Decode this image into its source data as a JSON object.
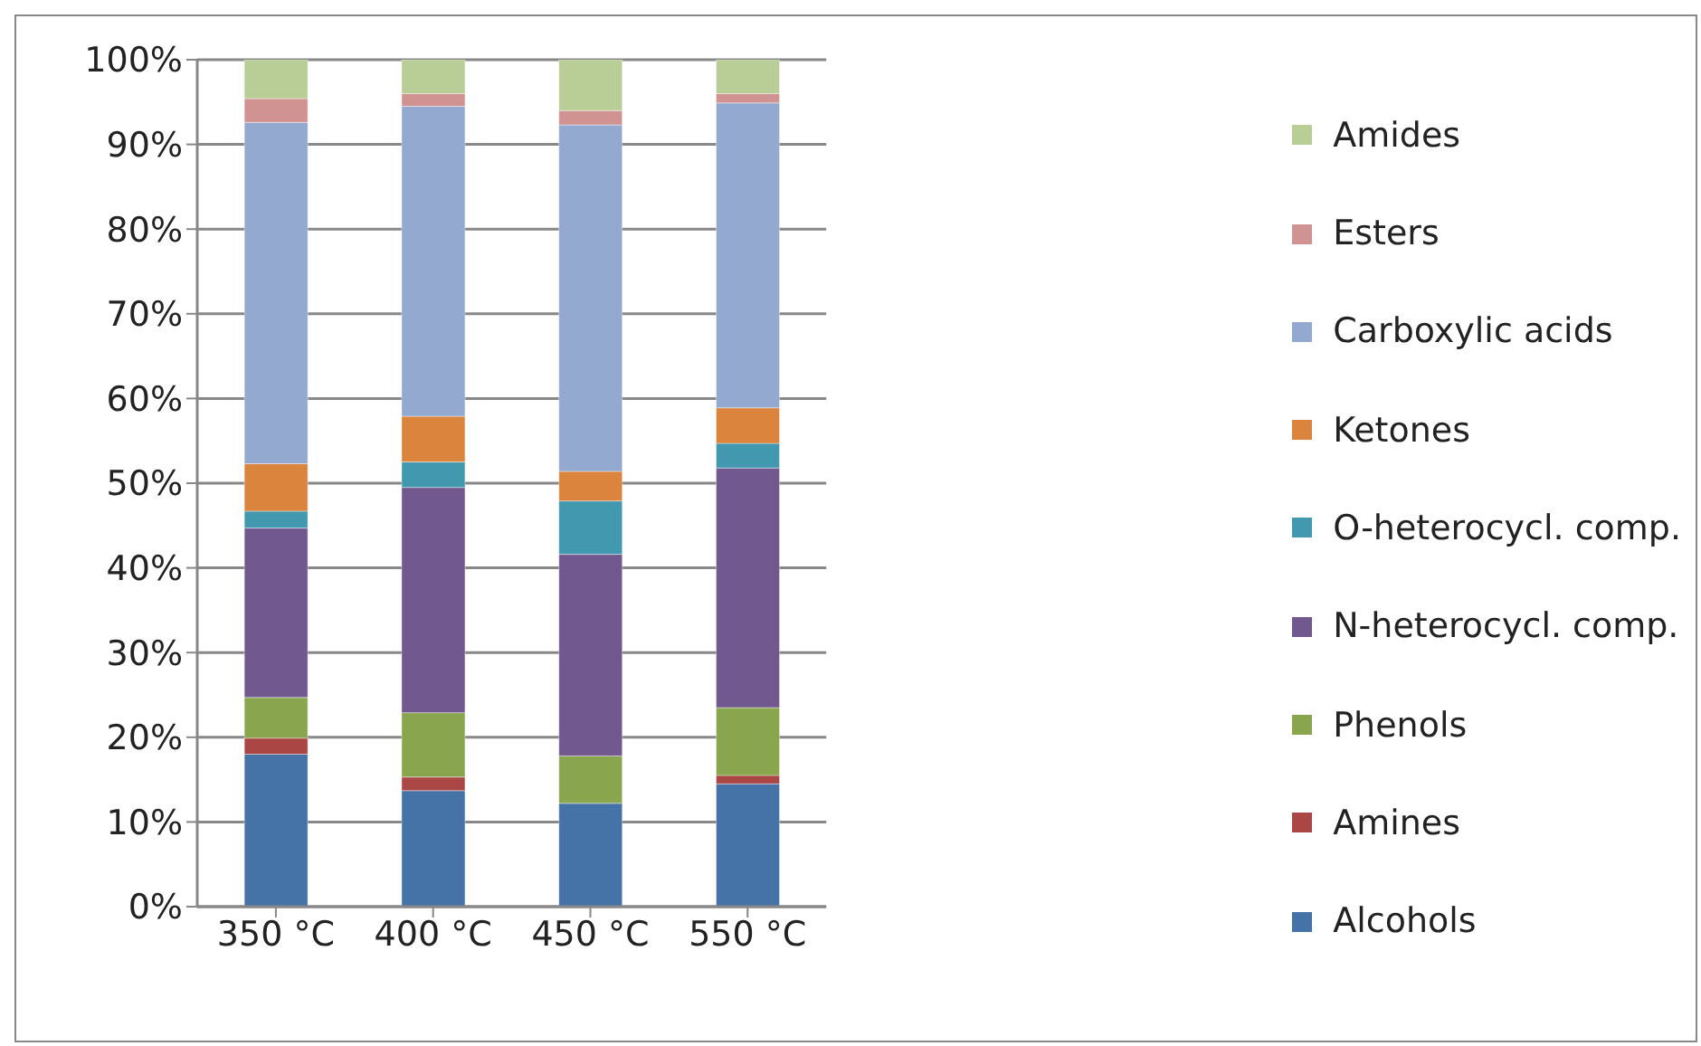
{
  "chart_data": {
    "type": "bar",
    "stacked": true,
    "categories": [
      "350 °C",
      "400 °C",
      "450 °C",
      "550 °C"
    ],
    "series": [
      {
        "name": "Alcohols",
        "color": "#4572a7",
        "values": [
          18.0,
          13.7,
          12.2,
          14.5
        ]
      },
      {
        "name": "Amines",
        "color": "#aa4643",
        "values": [
          1.9,
          1.6,
          0,
          1.0
        ]
      },
      {
        "name": "Phenols",
        "color": "#89a54e",
        "values": [
          4.8,
          7.6,
          5.6,
          8.0
        ]
      },
      {
        "name": "N-heterocycl. comp.",
        "color": "#71588f",
        "values": [
          20.0,
          26.6,
          23.8,
          28.3
        ]
      },
      {
        "name": "O-heterocycl. comp.",
        "color": "#4198af",
        "values": [
          2.0,
          3.0,
          6.3,
          2.9
        ]
      },
      {
        "name": "Ketones",
        "color": "#db843d",
        "values": [
          5.6,
          5.4,
          3.5,
          4.2
        ]
      },
      {
        "name": "Carboxylic acids",
        "color": "#93a9cf",
        "values": [
          40.3,
          36.6,
          40.9,
          36.0
        ]
      },
      {
        "name": "Esters",
        "color": "#d19392",
        "values": [
          2.8,
          1.5,
          1.7,
          1.1
        ]
      },
      {
        "name": "Amides",
        "color": "#b9cd96",
        "values": [
          4.6,
          4.0,
          6.0,
          4.0
        ]
      }
    ],
    "ylim": [
      0,
      100
    ],
    "yticks": [
      {
        "value": 0,
        "label": "0%"
      },
      {
        "value": 10,
        "label": "10%"
      },
      {
        "value": 20,
        "label": "20%"
      },
      {
        "value": 30,
        "label": "30%"
      },
      {
        "value": 40,
        "label": "40%"
      },
      {
        "value": 50,
        "label": "50%"
      },
      {
        "value": 60,
        "label": "60%"
      },
      {
        "value": 70,
        "label": "70%"
      },
      {
        "value": 80,
        "label": "80%"
      },
      {
        "value": 90,
        "label": "90%"
      },
      {
        "value": 100,
        "label": "100%"
      }
    ],
    "grid": "y",
    "legend": "right"
  }
}
